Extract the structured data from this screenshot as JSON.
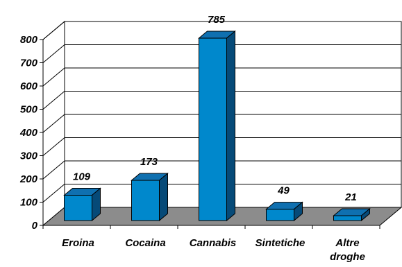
{
  "chart_data": {
    "type": "bar",
    "title": "",
    "xlabel": "",
    "ylabel": "",
    "categories": [
      "Eroina",
      "Cocaina",
      "Cannabis",
      "Sintetiche",
      "Altre droghe"
    ],
    "category_lines": [
      [
        "Eroina"
      ],
      [
        "Cocaina"
      ],
      [
        "Cannabis"
      ],
      [
        "Sintetiche"
      ],
      [
        "Altre",
        "droghe"
      ]
    ],
    "values": [
      109,
      173,
      785,
      49,
      21
    ],
    "data_labels": [
      "109",
      "173",
      "785",
      "49",
      "21"
    ],
    "ylim": [
      0,
      800
    ],
    "y_ticks": [
      0,
      100,
      200,
      300,
      400,
      500,
      600,
      700,
      800
    ],
    "y_tick_labels": [
      "0",
      "100",
      "200",
      "300",
      "400",
      "500",
      "600",
      "700",
      "800"
    ],
    "grid": true,
    "legend": "none",
    "style": "3d",
    "colors": {
      "bar_front": "#0088CC",
      "bar_top": "#0F70B0",
      "bar_side": "#064A78",
      "floor": "#8C8C8C",
      "gridline": "#000000"
    }
  }
}
